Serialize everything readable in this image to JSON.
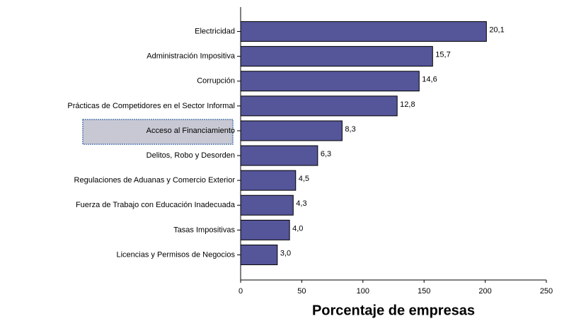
{
  "chart_data": {
    "type": "bar",
    "orientation": "horizontal",
    "categories": [
      "Electricidad",
      "Administración Impositiva",
      "Corrupción",
      "Prácticas de Competidores en el Sector Informal",
      "Acceso al Financiamiento",
      "Delitos, Robo y Desorden",
      "Regulaciones de Aduanas y Comercio Exterior",
      "Fuerza de Trabajo con Educación Inadecuada",
      "Tasas Impositivas",
      "Licencias y Permisos de Negocios"
    ],
    "values": [
      201,
      157,
      146,
      128,
      83,
      63,
      45,
      43,
      40,
      30
    ],
    "value_labels": [
      "20,1",
      "15,7",
      "14,6",
      "12,8",
      "8,3",
      "6,3",
      "4,5",
      "4,3",
      "4,0",
      "3,0"
    ],
    "color": "#55559a",
    "xlim": [
      0,
      250
    ],
    "xticks": [
      0,
      50,
      100,
      150,
      200,
      250
    ],
    "xlabel": "Porcentaje de empresas"
  }
}
